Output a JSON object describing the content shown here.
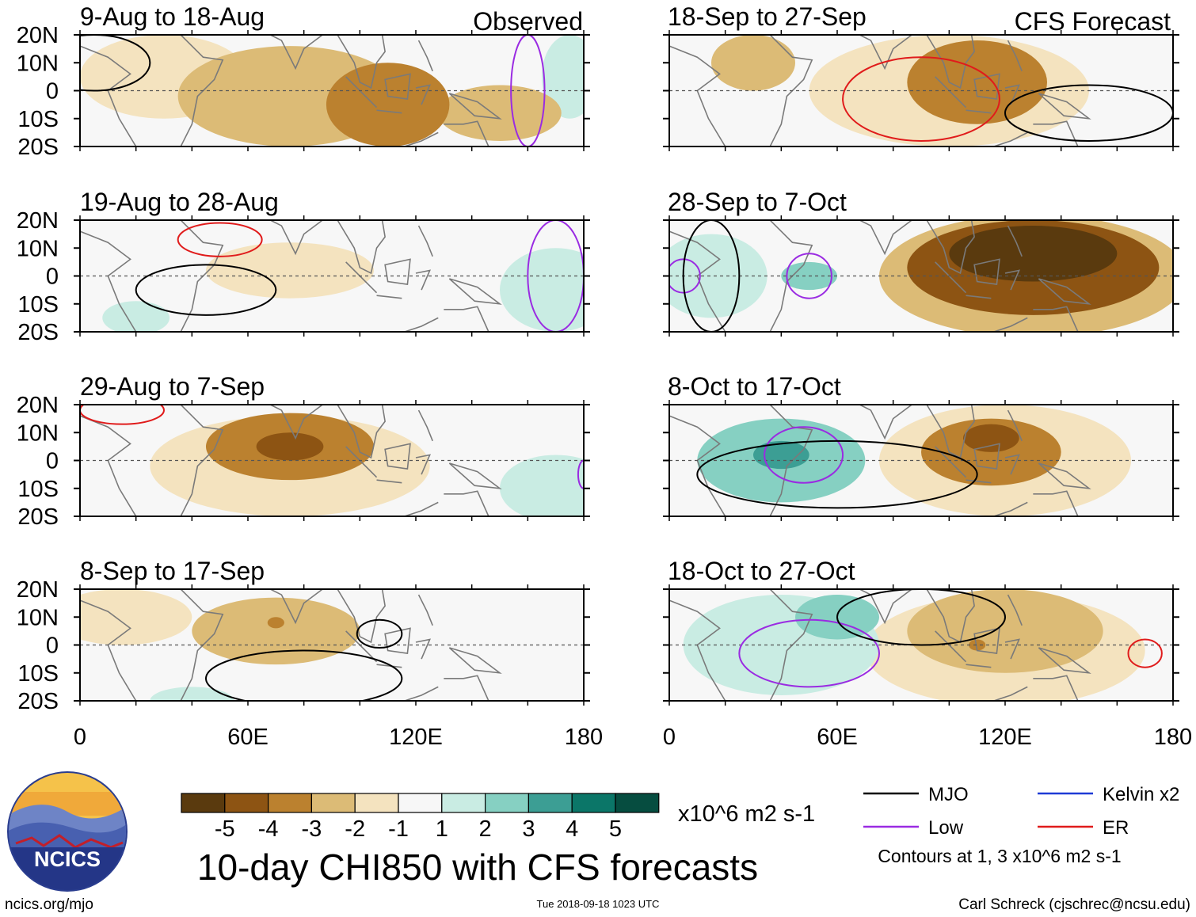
{
  "figure": {
    "main_title": "10-day CHI850 with CFS forecasts",
    "units": "x10^6 m2 s-1",
    "site": "ncics.org/mjo",
    "timestamp": "Tue 2018-09-18 1023 UTC",
    "author": "Carl Schreck (cjschrec@ncsu.edu)",
    "logo_text": "NCICS",
    "column_labels": {
      "left": "Observed",
      "right": "CFS Forecast"
    }
  },
  "legend": {
    "items": [
      {
        "label": "MJO",
        "color": "#000000"
      },
      {
        "label": "Kelvin x2",
        "color": "#1f3bd6"
      },
      {
        "label": "Low",
        "color": "#9a2be2"
      },
      {
        "label": "ER",
        "color": "#e01b1b"
      }
    ],
    "contour_note": "Contours at 1, 3 x10^6 m2 s-1"
  },
  "colorbar": {
    "colors": [
      "#5a3a0e",
      "#8d5413",
      "#bb812f",
      "#dcbb76",
      "#f4e3bf",
      "#f7f7f7",
      "#c9ece3",
      "#86d0c2",
      "#3c9e94",
      "#0b7668",
      "#064d40"
    ],
    "labels": [
      "-5",
      "-4",
      "-3",
      "-2",
      "-1",
      "1",
      "2",
      "3",
      "4",
      "5"
    ]
  },
  "chart_data": {
    "type": "heatmap",
    "variable": "CHI850 anomaly (10-day mean)",
    "x_axis": {
      "range": [
        0,
        180
      ],
      "ticks": [
        "0",
        "60E",
        "120E",
        "180"
      ]
    },
    "y_axis": {
      "range": [
        -20,
        20
      ],
      "ticks": [
        "20N",
        "10N",
        "0",
        "10S",
        "20S"
      ]
    },
    "panels": [
      {
        "period": "9-Aug to 18-Aug",
        "type": "observed",
        "anomalies": [
          {
            "lon": 75,
            "lat": -2,
            "value": -2,
            "rx": 40,
            "ry": 18
          },
          {
            "lon": 110,
            "lat": -5,
            "value": -3,
            "rx": 22,
            "ry": 15
          },
          {
            "lon": 150,
            "lat": -8,
            "value": -2,
            "rx": 22,
            "ry": 10
          },
          {
            "lon": 30,
            "lat": 5,
            "value": -1,
            "rx": 30,
            "ry": 15
          },
          {
            "lon": 175,
            "lat": 5,
            "value": 1,
            "rx": 10,
            "ry": 15
          }
        ],
        "contours": [
          {
            "kind": "Low",
            "lon": 160,
            "lat": 0,
            "rx": 6,
            "ry": 20
          },
          {
            "kind": "MJO",
            "lon": 5,
            "lat": 10,
            "rx": 20,
            "ry": 10
          }
        ]
      },
      {
        "period": "19-Aug to 28-Aug",
        "type": "observed",
        "anomalies": [
          {
            "lon": 75,
            "lat": 2,
            "value": -1,
            "rx": 30,
            "ry": 10
          },
          {
            "lon": 170,
            "lat": -5,
            "value": 1,
            "rx": 20,
            "ry": 15
          },
          {
            "lon": 20,
            "lat": -15,
            "value": 1,
            "rx": 12,
            "ry": 6
          }
        ],
        "contours": [
          {
            "kind": "ER",
            "lon": 50,
            "lat": 13,
            "rx": 15,
            "ry": 6
          },
          {
            "kind": "MJO",
            "lon": 45,
            "lat": -5,
            "rx": 25,
            "ry": 9
          },
          {
            "kind": "Low",
            "lon": 170,
            "lat": 0,
            "rx": 10,
            "ry": 20
          }
        ]
      },
      {
        "period": "29-Aug to 7-Sep",
        "type": "observed",
        "anomalies": [
          {
            "lon": 75,
            "lat": 5,
            "value": -3,
            "rx": 30,
            "ry": 12
          },
          {
            "lon": 75,
            "lat": 5,
            "value": -4,
            "rx": 12,
            "ry": 5
          },
          {
            "lon": 75,
            "lat": -2,
            "value": -1,
            "rx": 50,
            "ry": 18
          },
          {
            "lon": 170,
            "lat": -10,
            "value": 1,
            "rx": 20,
            "ry": 12
          }
        ],
        "contours": [
          {
            "kind": "ER",
            "lon": 15,
            "lat": 18,
            "rx": 15,
            "ry": 5
          },
          {
            "kind": "Low",
            "lon": 180,
            "lat": -5,
            "rx": 2,
            "ry": 5
          }
        ]
      },
      {
        "period": "8-Sep to 17-Sep",
        "type": "observed",
        "anomalies": [
          {
            "lon": 70,
            "lat": 5,
            "value": -2,
            "rx": 30,
            "ry": 12
          },
          {
            "lon": 70,
            "lat": 8,
            "value": -3,
            "rx": 3,
            "ry": 2
          },
          {
            "lon": 15,
            "lat": 10,
            "value": -1,
            "rx": 25,
            "ry": 10
          },
          {
            "lon": 40,
            "lat": -20,
            "value": 1,
            "rx": 15,
            "ry": 5
          }
        ],
        "contours": [
          {
            "kind": "MJO",
            "lon": 80,
            "lat": -12,
            "rx": 35,
            "ry": 10
          },
          {
            "kind": "MJO",
            "lon": 107,
            "lat": 4,
            "rx": 8,
            "ry": 5
          }
        ]
      },
      {
        "period": "18-Sep to 27-Sep",
        "type": "forecast",
        "anomalies": [
          {
            "lon": 110,
            "lat": 3,
            "value": -3,
            "rx": 25,
            "ry": 15
          },
          {
            "lon": 100,
            "lat": 0,
            "value": -1,
            "rx": 50,
            "ry": 20
          },
          {
            "lon": 30,
            "lat": 10,
            "value": -2,
            "rx": 15,
            "ry": 10
          }
        ],
        "contours": [
          {
            "kind": "ER",
            "lon": 90,
            "lat": -3,
            "rx": 28,
            "ry": 15
          },
          {
            "kind": "MJO",
            "lon": 150,
            "lat": -8,
            "rx": 30,
            "ry": 10
          }
        ]
      },
      {
        "period": "28-Sep to 7-Oct",
        "type": "forecast",
        "anomalies": [
          {
            "lon": 130,
            "lat": 8,
            "value": -5,
            "rx": 30,
            "ry": 10
          },
          {
            "lon": 130,
            "lat": 3,
            "value": -4,
            "rx": 45,
            "ry": 17
          },
          {
            "lon": 130,
            "lat": 0,
            "value": -2,
            "rx": 55,
            "ry": 22
          },
          {
            "lon": 50,
            "lat": 0,
            "value": 2,
            "rx": 10,
            "ry": 5
          },
          {
            "lon": 15,
            "lat": 0,
            "value": 1,
            "rx": 20,
            "ry": 15
          }
        ],
        "contours": [
          {
            "kind": "Low",
            "lon": 50,
            "lat": 0,
            "rx": 8,
            "ry": 8
          },
          {
            "kind": "Low",
            "lon": 5,
            "lat": 0,
            "rx": 6,
            "ry": 6
          },
          {
            "kind": "MJO",
            "lon": 15,
            "lat": 0,
            "rx": 10,
            "ry": 20
          }
        ]
      },
      {
        "period": "8-Oct to 17-Oct",
        "type": "forecast",
        "anomalies": [
          {
            "lon": 115,
            "lat": 3,
            "value": -3,
            "rx": 25,
            "ry": 12
          },
          {
            "lon": 115,
            "lat": 8,
            "value": -4,
            "rx": 10,
            "ry": 5
          },
          {
            "lon": 120,
            "lat": 0,
            "value": -1,
            "rx": 45,
            "ry": 20
          },
          {
            "lon": 40,
            "lat": 0,
            "value": 2,
            "rx": 30,
            "ry": 15
          },
          {
            "lon": 40,
            "lat": 2,
            "value": 3,
            "rx": 10,
            "ry": 5
          }
        ],
        "contours": [
          {
            "kind": "Low",
            "lon": 48,
            "lat": 2,
            "rx": 14,
            "ry": 10
          },
          {
            "kind": "MJO",
            "lon": 60,
            "lat": -5,
            "rx": 50,
            "ry": 12
          }
        ]
      },
      {
        "period": "18-Oct to 27-Oct",
        "type": "forecast",
        "anomalies": [
          {
            "lon": 120,
            "lat": 5,
            "value": -2,
            "rx": 35,
            "ry": 15
          },
          {
            "lon": 120,
            "lat": -2,
            "value": -1,
            "rx": 50,
            "ry": 20
          },
          {
            "lon": 110,
            "lat": 0,
            "value": -3,
            "rx": 3,
            "ry": 2
          },
          {
            "lon": 40,
            "lat": 0,
            "value": 1,
            "rx": 35,
            "ry": 18
          },
          {
            "lon": 60,
            "lat": 10,
            "value": 2,
            "rx": 15,
            "ry": 8
          }
        ],
        "contours": [
          {
            "kind": "Low",
            "lon": 50,
            "lat": -3,
            "rx": 25,
            "ry": 12
          },
          {
            "kind": "ER",
            "lon": 170,
            "lat": -3,
            "rx": 6,
            "ry": 5
          },
          {
            "kind": "MJO",
            "lon": 90,
            "lat": 10,
            "rx": 30,
            "ry": 10
          }
        ]
      }
    ]
  }
}
